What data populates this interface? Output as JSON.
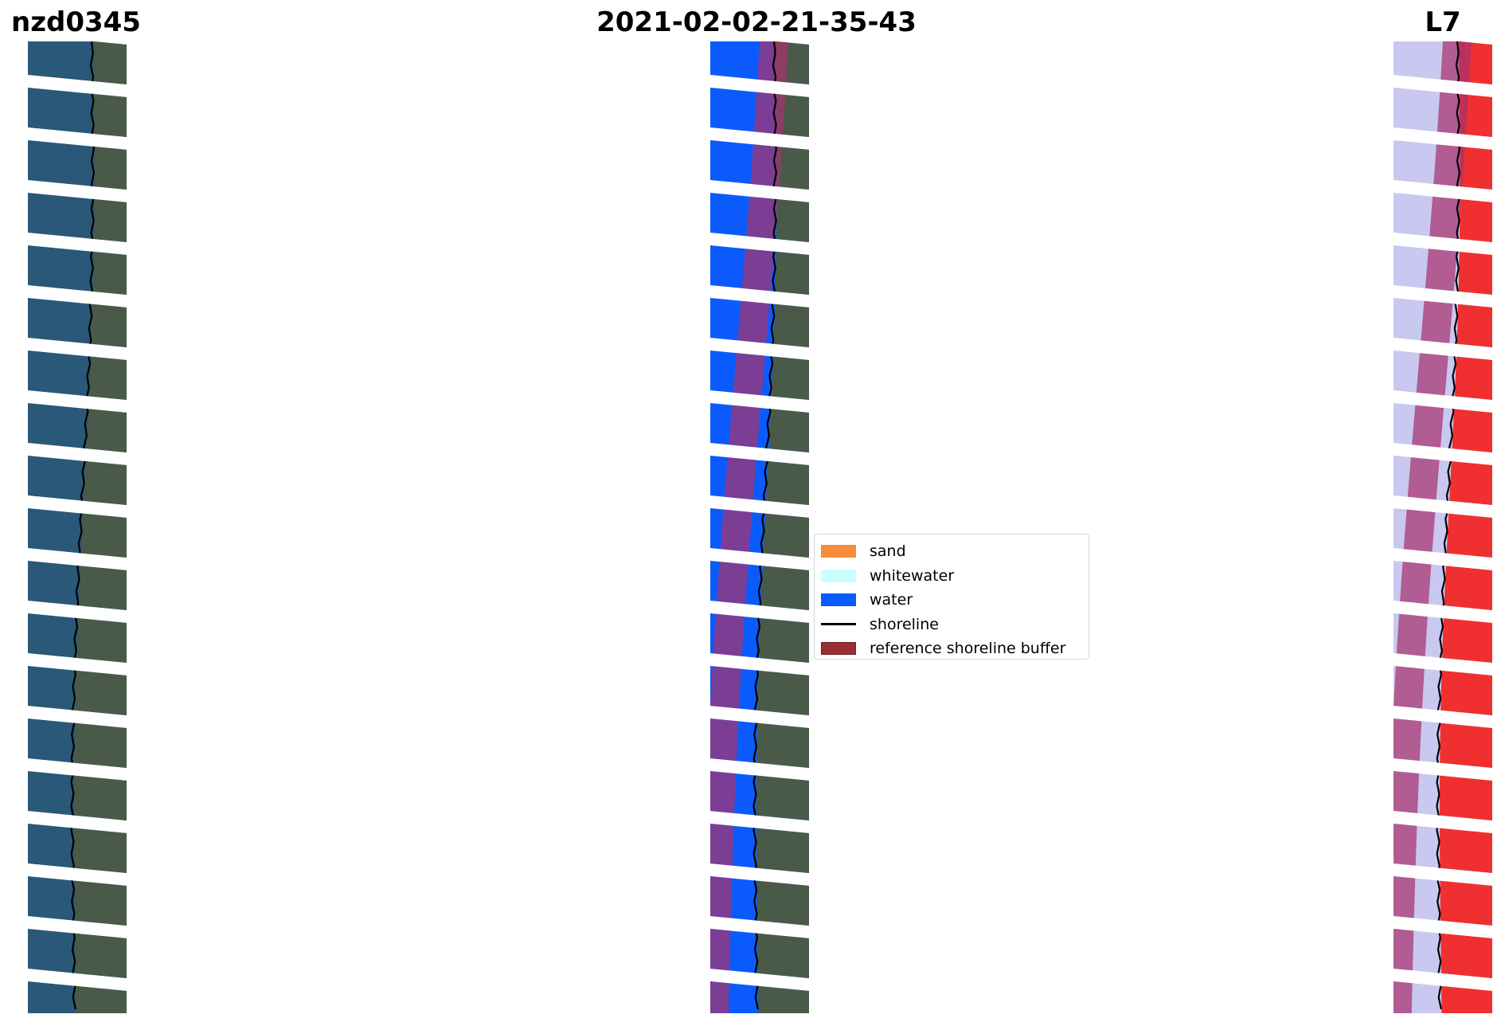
{
  "titles": {
    "site": "nzd0345",
    "date": "2021-02-02-21-35-43",
    "satellite": "L7"
  },
  "legend": {
    "items": [
      {
        "label": "sand",
        "color": "#f98c3a",
        "kind": "patch"
      },
      {
        "label": "whitewater",
        "color": "#cbffff",
        "kind": "patch"
      },
      {
        "label": "water",
        "color": "#0b5bfc",
        "kind": "patch"
      },
      {
        "label": "shoreline",
        "color": "#000000",
        "kind": "line"
      },
      {
        "label": "reference shoreline buffer",
        "color": "#992f33",
        "kind": "patch",
        "edge": "#6e1f22"
      }
    ]
  },
  "colors": {
    "ocean": "#2a5878",
    "land": "#4a5a48",
    "water_class": "#0b5bfc",
    "buffer_overlay": "#a8326e",
    "index_water": "#c8c8f0",
    "index_land": "#f03030"
  }
}
